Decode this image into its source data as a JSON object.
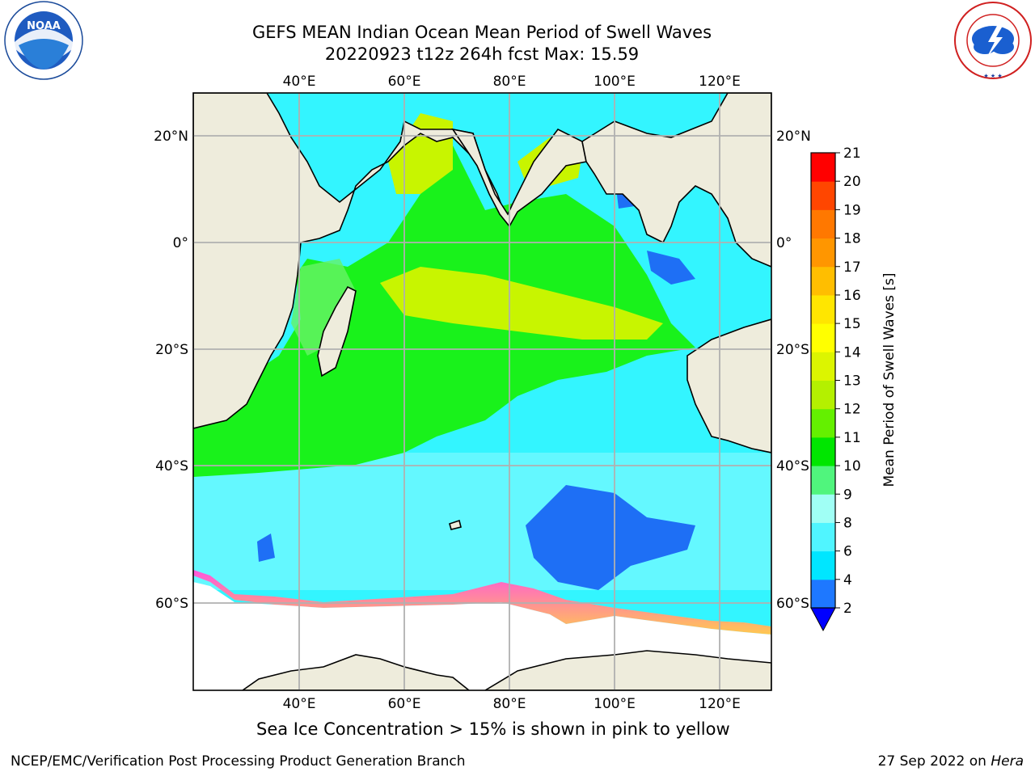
{
  "header": {
    "title_line1": "GEFS MEAN Indian Ocean Mean Period of Swell Waves",
    "title_line2": "20220923 t12z 264h fcst   Max: 15.59"
  },
  "logos": {
    "left": {
      "icon": "noaa-logo",
      "text": "NOAA",
      "ring_text": "NATIONAL OCEANIC AND ATMOSPHERIC ADMINISTRATION · U.S. DEPARTMENT OF COMMERCE"
    },
    "right": {
      "icon": "nws-logo",
      "ring_text": "NATIONAL WEATHER SERVICE"
    }
  },
  "map": {
    "lon_labels": [
      "40°E",
      "60°E",
      "80°E",
      "100°E",
      "120°E"
    ],
    "lat_labels": [
      "20°N",
      "0°",
      "20°S",
      "40°S",
      "60°S"
    ],
    "colors": {
      "land": "#eeecdc",
      "deep_blue": "#1e6ff5",
      "cyan": "#33f5ff",
      "light_cyan": "#8cfaff",
      "green": "#19f21b",
      "light_green": "#66f266",
      "yellow_green": "#c8f500",
      "ice_pink": "#ff55dd",
      "ice_yellow": "#ffc850"
    }
  },
  "colorbar": {
    "label": "Mean Period of Swell Waves [s]",
    "ticks": [
      "2",
      "4",
      "6",
      "8",
      "9",
      "10",
      "11",
      "12",
      "13",
      "14",
      "15",
      "16",
      "17",
      "18",
      "19",
      "20",
      "21"
    ],
    "colors": [
      "#0000ff",
      "#1e78ff",
      "#00e6ff",
      "#50f5ff",
      "#a0fff5",
      "#50f57d",
      "#00e600",
      "#64f000",
      "#b4f000",
      "#dcf500",
      "#ffff00",
      "#ffe600",
      "#ffbe00",
      "#ff9600",
      "#ff7800",
      "#ff4600",
      "#ff0000"
    ]
  },
  "caption": "Sea Ice Concentration > 15% is shown in pink to yellow",
  "footer": {
    "left": "NCEP/EMC/Verification Post Processing Product Generation Branch",
    "right_date": "27 Sep 2022 on ",
    "right_machine": "Hera"
  }
}
